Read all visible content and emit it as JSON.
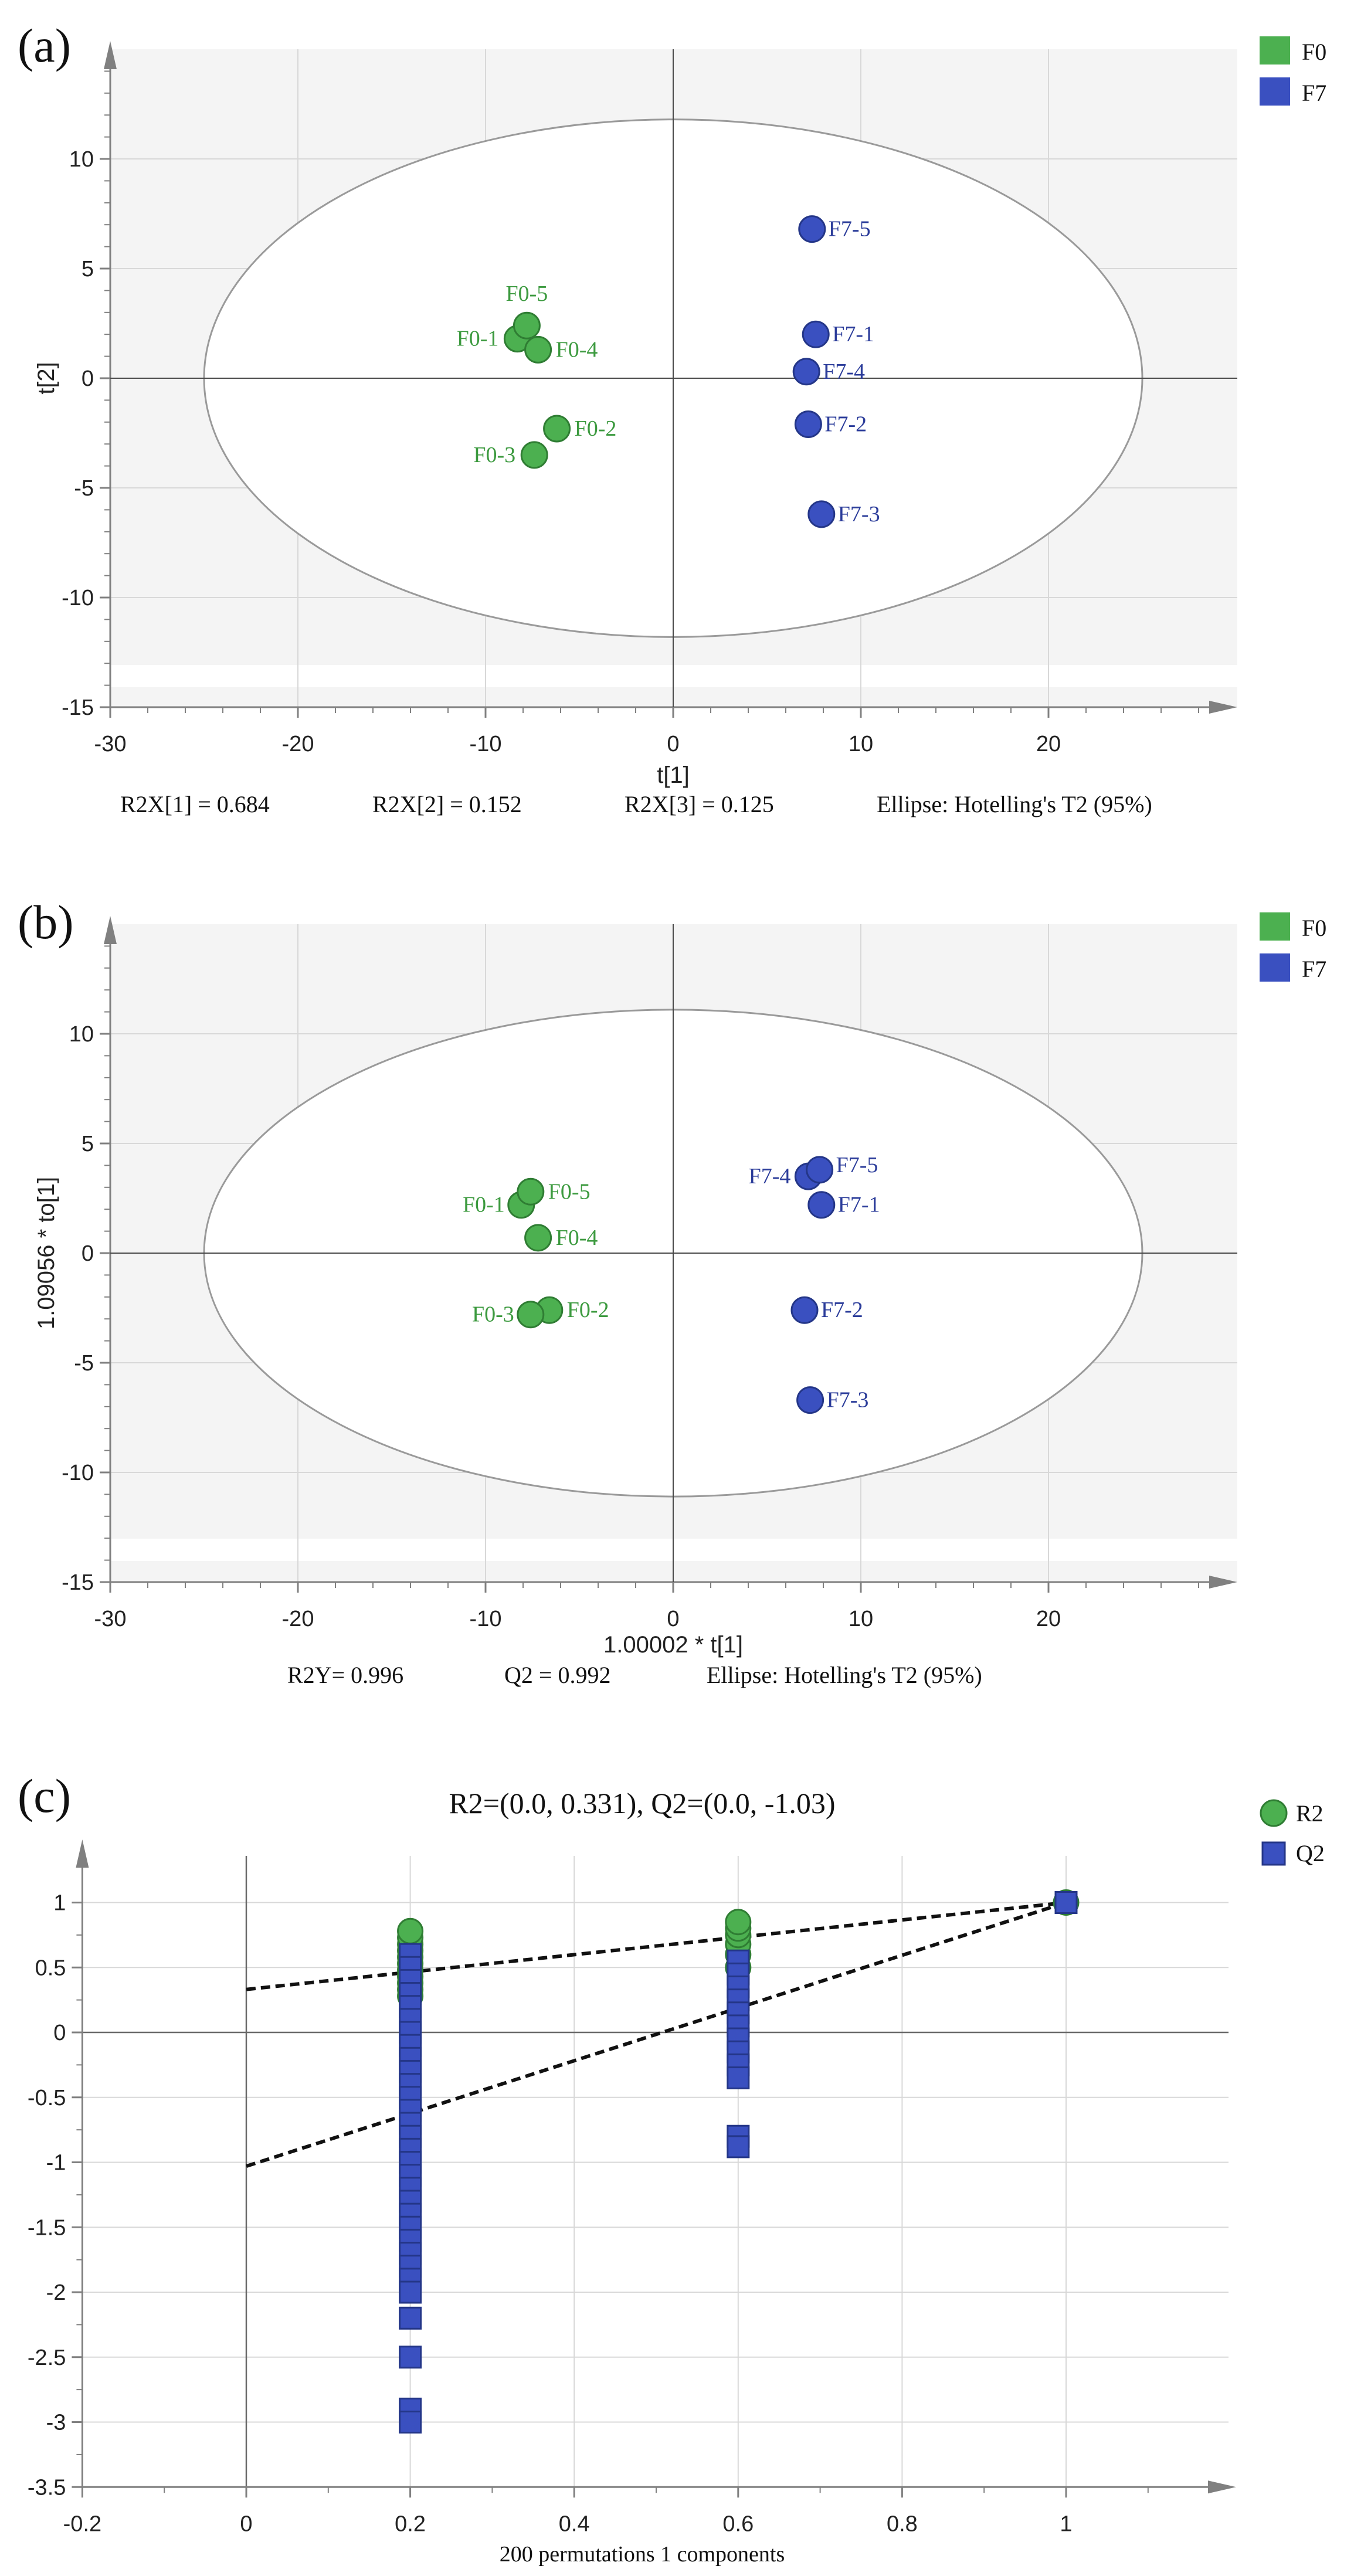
{
  "colors": {
    "f0": "#4CB050",
    "f7": "#3A50C0",
    "f0_text": "#3C9A3F",
    "f7_text": "#2B3C9A",
    "band": "#F4F4F4",
    "grid": "#D8D8D8",
    "axis": "#808080",
    "ellipse": "#9A9A9A"
  },
  "chart_data": [
    {
      "type": "scatter",
      "panel_label": "(a)",
      "xlabel": "t[1]",
      "ylabel": "t[2]",
      "xlim": [
        -30,
        30
      ],
      "ylim": [
        -15,
        15
      ],
      "xticks": [
        -30,
        -20,
        -10,
        0,
        10,
        20
      ],
      "yticks": [
        -15,
        -10,
        -5,
        0,
        5,
        10
      ],
      "grid": true,
      "legend": {
        "placement": "top-right",
        "entries": [
          "F0",
          "F7"
        ]
      },
      "ellipse": {
        "label": "Hotelling's T2 (95%)",
        "rx": 25,
        "ry": 11.8
      },
      "series": [
        {
          "name": "F0",
          "points": [
            {
              "label": "F0-1",
              "x": -8.3,
              "y": 1.8
            },
            {
              "label": "F0-2",
              "x": -6.2,
              "y": -2.3
            },
            {
              "label": "F0-3",
              "x": -7.4,
              "y": -3.5
            },
            {
              "label": "F0-4",
              "x": -7.2,
              "y": 1.3
            },
            {
              "label": "F0-5",
              "x": -7.8,
              "y": 2.4
            }
          ]
        },
        {
          "name": "F7",
          "points": [
            {
              "label": "F7-1",
              "x": 7.6,
              "y": 2.0
            },
            {
              "label": "F7-2",
              "x": 7.2,
              "y": -2.1
            },
            {
              "label": "F7-3",
              "x": 7.9,
              "y": -6.2
            },
            {
              "label": "F7-4",
              "x": 7.1,
              "y": 0.3
            },
            {
              "label": "F7-5",
              "x": 7.4,
              "y": 6.8
            }
          ]
        }
      ],
      "footer": [
        "R2X[1] = 0.684",
        "R2X[2] = 0.152",
        "R2X[3] = 0.125",
        "Ellipse: Hotelling's T2 (95%)"
      ]
    },
    {
      "type": "scatter",
      "panel_label": "(b)",
      "xlabel": "1.00002 * t[1]",
      "ylabel": "1.09056 * to[1]",
      "xlim": [
        -30,
        30
      ],
      "ylim": [
        -15,
        15
      ],
      "xticks": [
        -30,
        -20,
        -10,
        0,
        10,
        20
      ],
      "yticks": [
        -15,
        -10,
        -5,
        0,
        5,
        10
      ],
      "grid": true,
      "legend": {
        "placement": "top-right",
        "entries": [
          "F0",
          "F7"
        ]
      },
      "ellipse": {
        "label": "Hotelling's T2 (95%)",
        "rx": 25,
        "ry": 11.1
      },
      "series": [
        {
          "name": "F0",
          "points": [
            {
              "label": "F0-1",
              "x": -8.1,
              "y": 2.2
            },
            {
              "label": "F0-2",
              "x": -6.6,
              "y": -2.6
            },
            {
              "label": "F0-3",
              "x": -7.6,
              "y": -2.8
            },
            {
              "label": "F0-4",
              "x": -7.2,
              "y": 0.7
            },
            {
              "label": "F0-5",
              "x": -7.6,
              "y": 2.8
            }
          ]
        },
        {
          "name": "F7",
          "points": [
            {
              "label": "F7-1",
              "x": 7.9,
              "y": 2.2
            },
            {
              "label": "F7-2",
              "x": 7.0,
              "y": -2.6
            },
            {
              "label": "F7-3",
              "x": 7.3,
              "y": -6.7
            },
            {
              "label": "F7-4",
              "x": 7.2,
              "y": 3.5
            },
            {
              "label": "F7-5",
              "x": 7.8,
              "y": 3.8
            }
          ]
        }
      ],
      "footer": [
        "R2Y= 0.996",
        "Q2 = 0.992",
        "Ellipse: Hotelling's T2 (95%)"
      ]
    },
    {
      "type": "scatter",
      "panel_label": "(c)",
      "title": "R2=(0.0, 0.331), Q2=(0.0, -1.03)",
      "xlabel": "200 permutations 1 components",
      "ylabel": "",
      "xlim": [
        -0.2,
        1.2
      ],
      "ylim": [
        -3.5,
        1.3
      ],
      "xticks": [
        -0.2,
        0,
        0.2,
        0.4,
        0.6,
        0.8,
        1
      ],
      "yticks": [
        -3.5,
        -3,
        -2.5,
        -2,
        -1.5,
        -1,
        -0.5,
        0,
        0.5,
        1
      ],
      "grid": true,
      "legend": {
        "placement": "top-right",
        "entries": [
          "R2",
          "Q2"
        ]
      },
      "regression_lines": [
        {
          "name": "R2",
          "intercept": 0.331,
          "end": [
            1,
            1
          ]
        },
        {
          "name": "Q2",
          "intercept": -1.03,
          "end": [
            1,
            1
          ]
        }
      ],
      "series": [
        {
          "name": "R2",
          "marker": "circle",
          "x": 0.2,
          "values": [
            0.28,
            0.33,
            0.38,
            0.43,
            0.48,
            0.53,
            0.58,
            0.63,
            0.68,
            0.73,
            0.78
          ]
        },
        {
          "name": "R2",
          "marker": "circle",
          "x": 0.6,
          "values": [
            0.5,
            0.6,
            0.68,
            0.75,
            0.8,
            0.85
          ]
        },
        {
          "name": "R2",
          "marker": "circle",
          "x": 1.0,
          "values": [
            1.0
          ]
        },
        {
          "name": "Q2",
          "marker": "square",
          "x": 0.2,
          "values": [
            0.6,
            0.5,
            0.4,
            0.3,
            0.2,
            0.1,
            0.0,
            -0.1,
            -0.2,
            -0.3,
            -0.4,
            -0.5,
            -0.6,
            -0.7,
            -0.8,
            -0.9,
            -1.0,
            -1.1,
            -1.2,
            -1.3,
            -1.4,
            -1.5,
            -1.6,
            -1.7,
            -1.8,
            -1.9,
            -2.0,
            -2.2,
            -2.5,
            -2.9,
            -3.0
          ]
        },
        {
          "name": "Q2",
          "marker": "square",
          "x": 0.6,
          "values": [
            0.55,
            0.45,
            0.35,
            0.25,
            0.15,
            0.05,
            -0.05,
            -0.15,
            -0.25,
            -0.35,
            -0.8,
            -0.88
          ]
        },
        {
          "name": "Q2",
          "marker": "square",
          "x": 1.0,
          "values": [
            1.0
          ]
        }
      ]
    }
  ]
}
